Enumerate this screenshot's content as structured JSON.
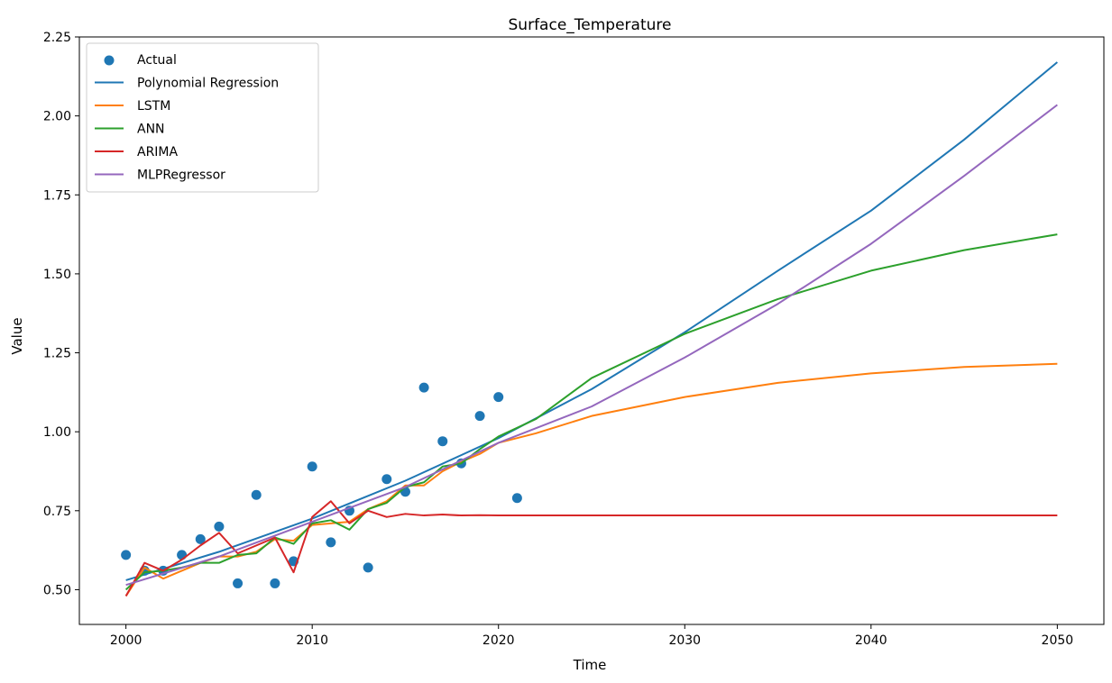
{
  "chart_data": {
    "type": "line",
    "title": "Surface_Temperature",
    "xlabel": "Time",
    "ylabel": "Value",
    "xlim": [
      1997.5,
      2052.5
    ],
    "ylim": [
      0.39,
      2.25
    ],
    "xticks": [
      2000,
      2010,
      2020,
      2030,
      2040,
      2050
    ],
    "yticks": [
      0.5,
      0.75,
      1.0,
      1.25,
      1.5,
      1.75,
      2.0,
      2.25
    ],
    "xtick_labels": [
      "2000",
      "2010",
      "2020",
      "2030",
      "2040",
      "2050"
    ],
    "ytick_labels": [
      "0.50",
      "0.75",
      "1.00",
      "1.25",
      "1.50",
      "1.75",
      "2.00",
      "2.25"
    ],
    "grid": false,
    "legend_position": "top-left",
    "scatter": {
      "name": "Actual",
      "color": "#1f77b4",
      "x": [
        2000,
        2001,
        2002,
        2003,
        2004,
        2005,
        2006,
        2007,
        2008,
        2009,
        2010,
        2011,
        2012,
        2013,
        2014,
        2015,
        2016,
        2017,
        2018,
        2019,
        2020,
        2021
      ],
      "y": [
        0.61,
        0.56,
        0.56,
        0.61,
        0.66,
        0.7,
        0.52,
        0.8,
        0.52,
        0.59,
        0.89,
        0.65,
        0.75,
        0.57,
        0.85,
        0.81,
        1.14,
        0.97,
        0.9,
        1.05,
        1.11,
        0.79
      ]
    },
    "series": [
      {
        "name": "Polynomial Regression",
        "color": "#1f77b4",
        "x": [
          2000,
          2005,
          2010,
          2015,
          2020,
          2025,
          2030,
          2035,
          2040,
          2045,
          2050
        ],
        "y": [
          0.53,
          0.62,
          0.725,
          0.845,
          0.98,
          1.135,
          1.315,
          1.51,
          1.7,
          1.925,
          2.17
        ]
      },
      {
        "name": "LSTM",
        "color": "#ff7f0e",
        "x": [
          2000,
          2001,
          2002,
          2003,
          2004,
          2005,
          2006,
          2007,
          2008,
          2009,
          2010,
          2011,
          2012,
          2013,
          2014,
          2015,
          2016,
          2017,
          2018,
          2019,
          2020,
          2022,
          2025,
          2030,
          2035,
          2040,
          2045,
          2050
        ],
        "y": [
          0.48,
          0.57,
          0.535,
          0.56,
          0.585,
          0.605,
          0.605,
          0.62,
          0.66,
          0.655,
          0.705,
          0.71,
          0.715,
          0.755,
          0.78,
          0.83,
          0.83,
          0.875,
          0.905,
          0.93,
          0.965,
          0.995,
          1.05,
          1.11,
          1.155,
          1.185,
          1.205,
          1.215
        ]
      },
      {
        "name": "ANN",
        "color": "#2ca02c",
        "x": [
          2000,
          2001,
          2002,
          2003,
          2004,
          2005,
          2006,
          2007,
          2008,
          2009,
          2010,
          2011,
          2012,
          2013,
          2014,
          2015,
          2016,
          2017,
          2018,
          2019,
          2020,
          2022,
          2025,
          2030,
          2035,
          2040,
          2045,
          2050
        ],
        "y": [
          0.5,
          0.555,
          0.56,
          0.57,
          0.585,
          0.585,
          0.61,
          0.615,
          0.665,
          0.645,
          0.71,
          0.72,
          0.69,
          0.755,
          0.775,
          0.825,
          0.84,
          0.89,
          0.9,
          0.945,
          0.985,
          1.04,
          1.17,
          1.31,
          1.42,
          1.51,
          1.575,
          1.625
        ]
      },
      {
        "name": "ARIMA",
        "color": "#d62728",
        "x": [
          2000,
          2001,
          2002,
          2003,
          2004,
          2005,
          2006,
          2007,
          2008,
          2009,
          2010,
          2011,
          2012,
          2013,
          2014,
          2015,
          2016,
          2017,
          2018,
          2019,
          2020,
          2025,
          2030,
          2035,
          2040,
          2045,
          2050
        ],
        "y": [
          0.48,
          0.585,
          0.56,
          0.595,
          0.64,
          0.68,
          0.615,
          0.64,
          0.665,
          0.555,
          0.73,
          0.78,
          0.71,
          0.75,
          0.73,
          0.74,
          0.735,
          0.738,
          0.735,
          0.736,
          0.735,
          0.735,
          0.735,
          0.735,
          0.735,
          0.735,
          0.735
        ]
      },
      {
        "name": "MLPRegressor",
        "color": "#9467bd",
        "x": [
          2000,
          2005,
          2010,
          2015,
          2020,
          2025,
          2030,
          2035,
          2040,
          2045,
          2050
        ],
        "y": [
          0.515,
          0.605,
          0.715,
          0.825,
          0.965,
          1.08,
          1.235,
          1.405,
          1.595,
          1.81,
          2.035
        ]
      }
    ]
  }
}
